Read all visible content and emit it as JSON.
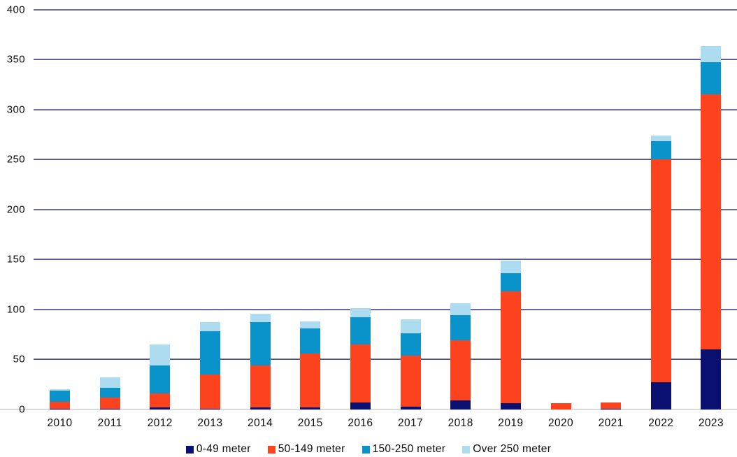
{
  "chart_data": {
    "type": "bar",
    "stacked": true,
    "title": "",
    "xlabel": "",
    "ylabel": "",
    "grid": "horizontal",
    "legend_position": "bottom",
    "categories": [
      "2010",
      "2011",
      "2012",
      "2013",
      "2014",
      "2015",
      "2016",
      "2017",
      "2018",
      "2019",
      "2020",
      "2021",
      "2022",
      "2023"
    ],
    "series": [
      {
        "name": "0-49 meter",
        "color": "#0A1070",
        "values": [
          1,
          1,
          2,
          1,
          2,
          2,
          7,
          3,
          9,
          6,
          0,
          1,
          27,
          60
        ]
      },
      {
        "name": "50-149 meter",
        "color": "#FC431E",
        "values": [
          7,
          11,
          14,
          34,
          42,
          54,
          58,
          51,
          60,
          112,
          6,
          6,
          223,
          255
        ]
      },
      {
        "name": "150-250 meter",
        "color": "#0A93CB",
        "values": [
          11,
          10,
          28,
          43,
          43,
          25,
          27,
          22,
          25,
          18,
          0,
          0,
          18,
          32
        ]
      },
      {
        "name": "Over 250 meter",
        "color": "#ADDBF0",
        "values": [
          1,
          10,
          21,
          9,
          9,
          7,
          9,
          14,
          12,
          13,
          0,
          0,
          6,
          16
        ]
      }
    ],
    "totals": [
      20,
      32,
      65,
      87,
      96,
      88,
      101,
      90,
      106,
      149,
      6,
      7,
      274,
      363
    ],
    "ylim": [
      0,
      400
    ],
    "yticks": [
      0,
      50,
      100,
      150,
      200,
      250,
      300,
      350,
      400
    ]
  },
  "colors": {
    "gridline": "#3A3F73",
    "axis_baseline": "#DBDBDB",
    "tick_text": "#0D0D0D"
  }
}
